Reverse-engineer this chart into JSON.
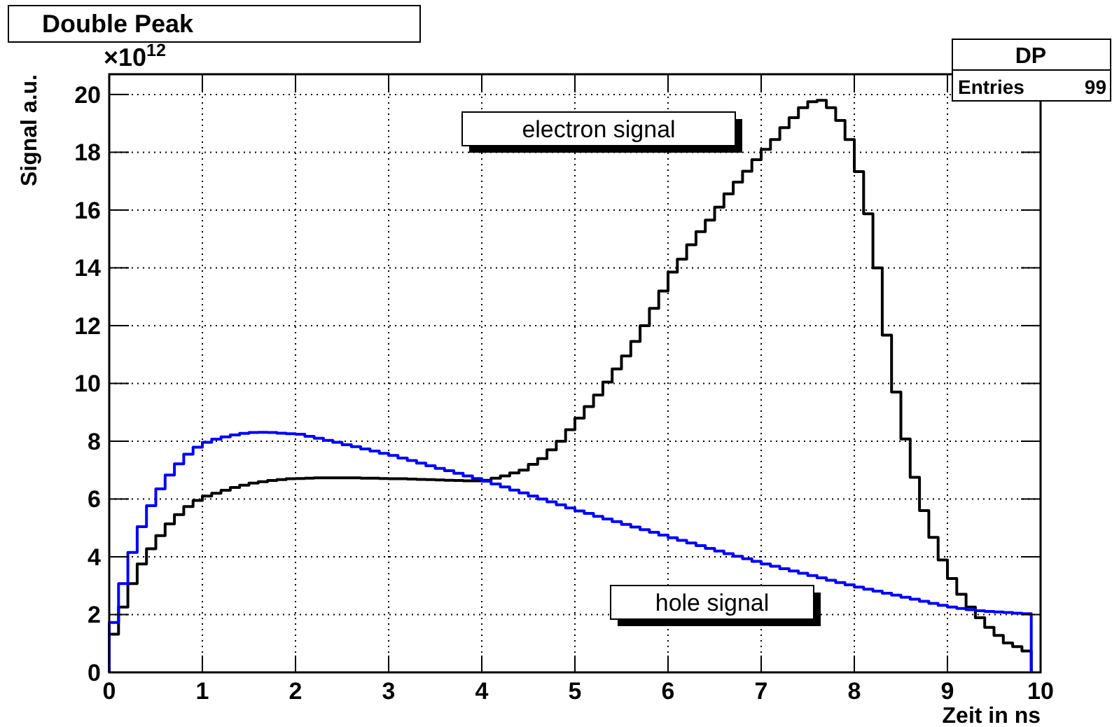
{
  "chart_data": {
    "type": "histogram",
    "title": "Double Peak",
    "xlabel": "Zeit in ns",
    "ylabel": "Signal a.u.",
    "annotations": [
      "×10$^{12}$",
      "DP",
      "Entries",
      "99"
    ],
    "bins": [
      0,
      0.1,
      0.2,
      0.3,
      0.4,
      0.5,
      0.6,
      0.7,
      0.8,
      0.9,
      1,
      1.1,
      1.2,
      1.3,
      1.4,
      1.5,
      1.6,
      1.7,
      1.8,
      1.9,
      2,
      2.1,
      2.2,
      2.3,
      2.4,
      2.5,
      2.6,
      2.7,
      2.8,
      2.9,
      3,
      3.1,
      3.2,
      3.3,
      3.4,
      3.5,
      3.6,
      3.7,
      3.8,
      3.9,
      4,
      4.1,
      4.2,
      4.3,
      4.4,
      4.5,
      4.6,
      4.7,
      4.8,
      4.9,
      5,
      5.1,
      5.2,
      5.3,
      5.4,
      5.5,
      5.6,
      5.7,
      5.8,
      5.9,
      6,
      6.1,
      6.2,
      6.3,
      6.4,
      6.5,
      6.6,
      6.7,
      6.8,
      6.9,
      7,
      7.1,
      7.2,
      7.3,
      7.4,
      7.5,
      7.6,
      7.7,
      7.8,
      7.9,
      8,
      8.1,
      8.2,
      8.3,
      8.4,
      8.5,
      8.6,
      8.7,
      8.8,
      8.9,
      9,
      9.1,
      9.2,
      9.3,
      9.4,
      9.5,
      9.6,
      9.7,
      9.8,
      9.9
    ],
    "series": [
      {
        "name": "electron signal",
        "color": "#000000",
        "values": [
          1.32,
          2.26,
          3.07,
          3.75,
          4.28,
          4.73,
          5.14,
          5.46,
          5.74,
          5.95,
          6.1,
          6.2,
          6.3,
          6.4,
          6.48,
          6.55,
          6.6,
          6.64,
          6.67,
          6.7,
          6.71,
          6.72,
          6.73,
          6.73,
          6.73,
          6.73,
          6.73,
          6.72,
          6.72,
          6.71,
          6.7,
          6.7,
          6.69,
          6.68,
          6.67,
          6.66,
          6.65,
          6.64,
          6.63,
          6.63,
          6.65,
          6.72,
          6.8,
          6.9,
          7.0,
          7.2,
          7.4,
          7.7,
          8.0,
          8.4,
          8.8,
          9.2,
          9.6,
          10.05,
          10.5,
          10.95,
          11.45,
          12.0,
          12.6,
          13.2,
          13.85,
          14.3,
          14.8,
          15.25,
          15.65,
          16.1,
          16.56,
          16.97,
          17.34,
          17.74,
          18.1,
          18.44,
          18.85,
          19.2,
          19.54,
          19.75,
          19.8,
          19.54,
          19.1,
          18.44,
          17.33,
          15.87,
          14.0,
          11.67,
          9.7,
          8.08,
          6.75,
          5.6,
          4.67,
          3.89,
          3.25,
          2.7,
          2.26,
          1.89,
          1.56,
          1.28,
          1.02,
          0.89,
          0.74
        ]
      },
      {
        "name": "hole signal",
        "color": "#0000ff",
        "values": [
          1.73,
          3.07,
          4.15,
          5.04,
          5.77,
          6.35,
          6.83,
          7.22,
          7.55,
          7.79,
          7.96,
          8.07,
          8.15,
          8.22,
          8.27,
          8.3,
          8.31,
          8.3,
          8.28,
          8.26,
          8.24,
          8.17,
          8.1,
          8.03,
          7.96,
          7.88,
          7.81,
          7.73,
          7.66,
          7.58,
          7.51,
          7.42,
          7.33,
          7.24,
          7.15,
          7.06,
          6.98,
          6.89,
          6.8,
          6.71,
          6.62,
          6.52,
          6.42,
          6.31,
          6.21,
          6.1,
          6.0,
          5.9,
          5.8,
          5.69,
          5.59,
          5.5,
          5.4,
          5.31,
          5.22,
          5.12,
          5.03,
          4.94,
          4.85,
          4.75,
          4.66,
          4.57,
          4.48,
          4.39,
          4.29,
          4.2,
          4.11,
          4.02,
          3.93,
          3.84,
          3.75,
          3.67,
          3.59,
          3.51,
          3.43,
          3.35,
          3.27,
          3.19,
          3.11,
          3.03,
          2.95,
          2.88,
          2.81,
          2.74,
          2.67,
          2.6,
          2.53,
          2.46,
          2.39,
          2.32,
          2.26,
          2.21,
          2.17,
          2.13,
          2.11,
          2.09,
          2.07,
          2.05,
          2.03
        ]
      }
    ],
    "xlim": [
      0,
      10
    ],
    "xticks": [
      0,
      1,
      2,
      3,
      4,
      5,
      6,
      7,
      8,
      9,
      10
    ],
    "ylim": [
      0,
      20.7
    ],
    "yticks": [
      0,
      2,
      4,
      6,
      8,
      10,
      12,
      14,
      16,
      18,
      20
    ],
    "grid": true,
    "legend": "top"
  }
}
